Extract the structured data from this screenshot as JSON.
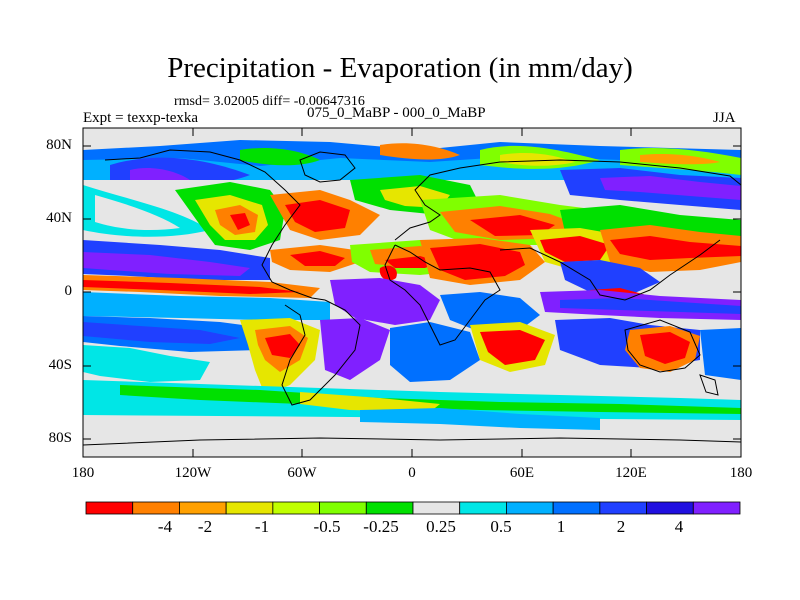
{
  "title": "Precipitation - Evaporation (in mm/day)",
  "stats": "rmsd= 3.02005 diff= -0.00647316",
  "experiment": "Expt = texxp-texka",
  "period": "075_0_MaBP - 000_0_MaBP",
  "season": "JJA",
  "colors": {
    "very_dry": "#ff0000",
    "dry": "#ff8000",
    "neutral_dry": "#e8e800",
    "moist_low": "#80ff00",
    "neutral": "#e6e6e6",
    "wet_low": "#00e6e6",
    "wet": "#2050ff",
    "very_wet": "#8020ff"
  },
  "map": {
    "lat_labels": [
      "80N",
      "40N",
      "0",
      "40S",
      "80S"
    ],
    "lon_labels": [
      "180",
      "120W",
      "60W",
      "0",
      "60E",
      "120E",
      "180"
    ]
  },
  "colorbar": {
    "colors": [
      "#ff0000",
      "#ff8000",
      "#ffa000",
      "#e6e600",
      "#c0ff00",
      "#80ff00",
      "#00e000",
      "#e6e6e6",
      "#00e6e6",
      "#00b0ff",
      "#0070ff",
      "#2040ff",
      "#2010e0",
      "#8020ff"
    ],
    "labels": [
      "-4",
      "-2",
      "-1",
      "-0.5",
      "-0.25",
      "0.25",
      "0.5",
      "1",
      "2",
      "4"
    ]
  }
}
